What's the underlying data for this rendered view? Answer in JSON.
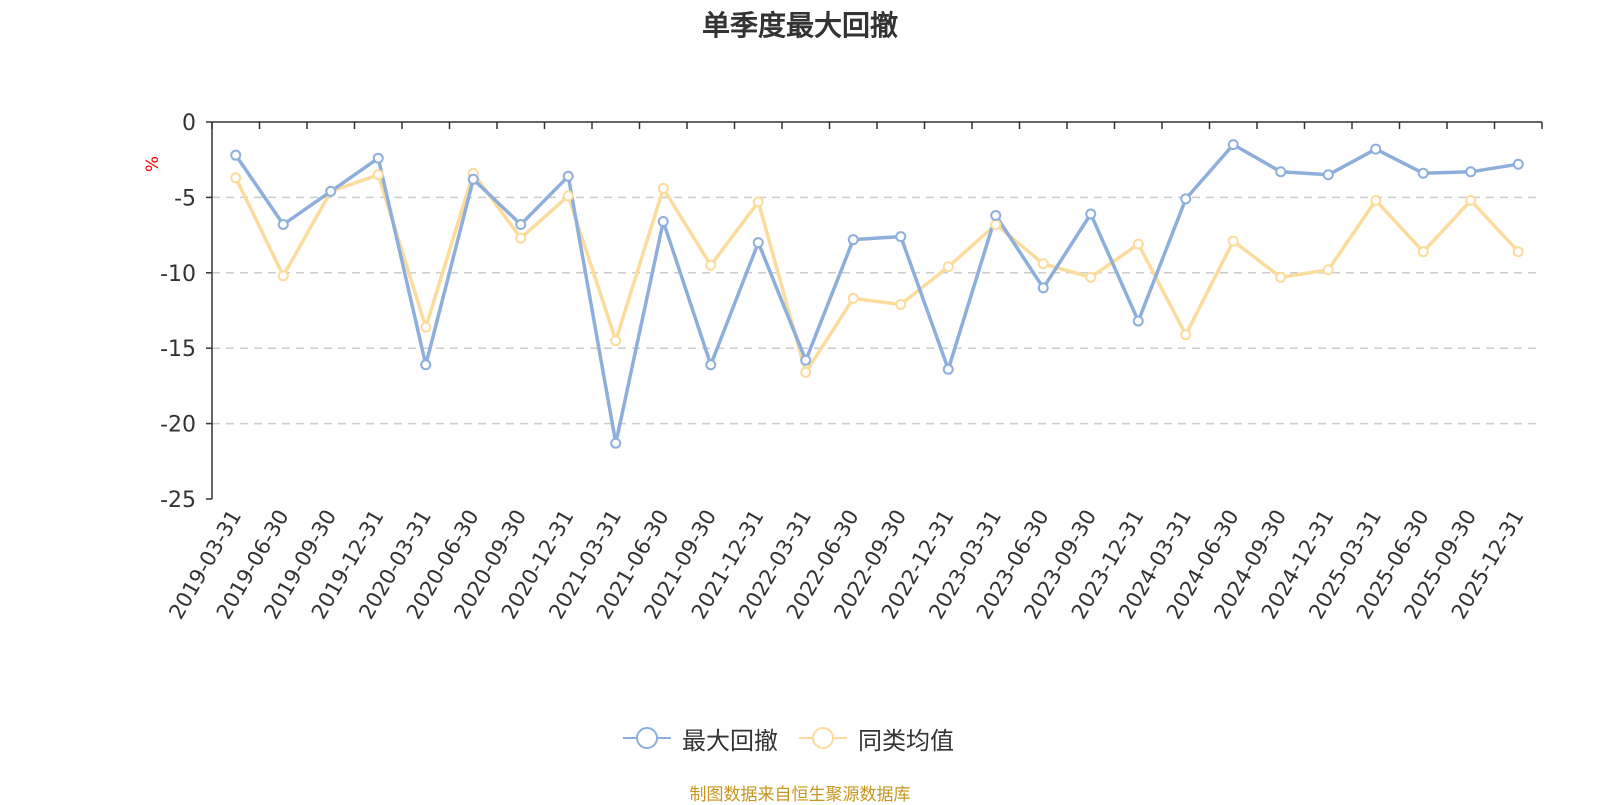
{
  "chart_data": {
    "type": "line",
    "title": "单季度最大回撤",
    "ylabel": "%",
    "ylim": [
      -25,
      0
    ],
    "yticks": [
      0,
      -5,
      -10,
      -15,
      -20,
      -25
    ],
    "grid": true,
    "legend_position": "bottom",
    "categories": [
      "2019-03-31",
      "2019-06-30",
      "2019-09-30",
      "2019-12-31",
      "2020-03-31",
      "2020-06-30",
      "2020-09-30",
      "2020-12-31",
      "2021-03-31",
      "2021-06-30",
      "2021-09-30",
      "2021-12-31",
      "2022-03-31",
      "2022-06-30",
      "2022-09-30",
      "2022-12-31",
      "2023-03-31",
      "2023-06-30",
      "2023-09-30",
      "2023-12-31",
      "2024-03-31",
      "2024-06-30",
      "2024-09-30",
      "2024-12-31",
      "2025-03-31",
      "2025-06-30",
      "2025-09-30",
      "2025-12-31"
    ],
    "series": [
      {
        "name": "最大回撤",
        "color": "#8eaedb",
        "values": [
          -2.2,
          -6.8,
          -4.6,
          -2.4,
          -16.1,
          -3.8,
          -6.8,
          -3.6,
          -21.3,
          -6.6,
          -16.1,
          -8.0,
          -15.8,
          -7.8,
          -7.6,
          -16.4,
          -6.2,
          -11.0,
          -6.1,
          -13.2,
          -5.1,
          -1.5,
          -3.3,
          -3.5,
          -1.8,
          -3.4,
          -3.3,
          -2.8
        ]
      },
      {
        "name": "同类均值",
        "color": "#fbdc9c",
        "values": [
          -3.7,
          -10.2,
          -4.6,
          -3.5,
          -13.6,
          -3.4,
          -7.7,
          -4.9,
          -14.5,
          -4.4,
          -9.5,
          -5.3,
          -16.6,
          -11.7,
          -12.1,
          -9.6,
          -6.8,
          -9.4,
          -10.3,
          -8.1,
          -14.1,
          -7.9,
          -10.3,
          -9.8,
          -5.2,
          -8.6,
          -5.2,
          -8.6
        ]
      }
    ]
  },
  "source_note": "制图数据来自恒生聚源数据库"
}
